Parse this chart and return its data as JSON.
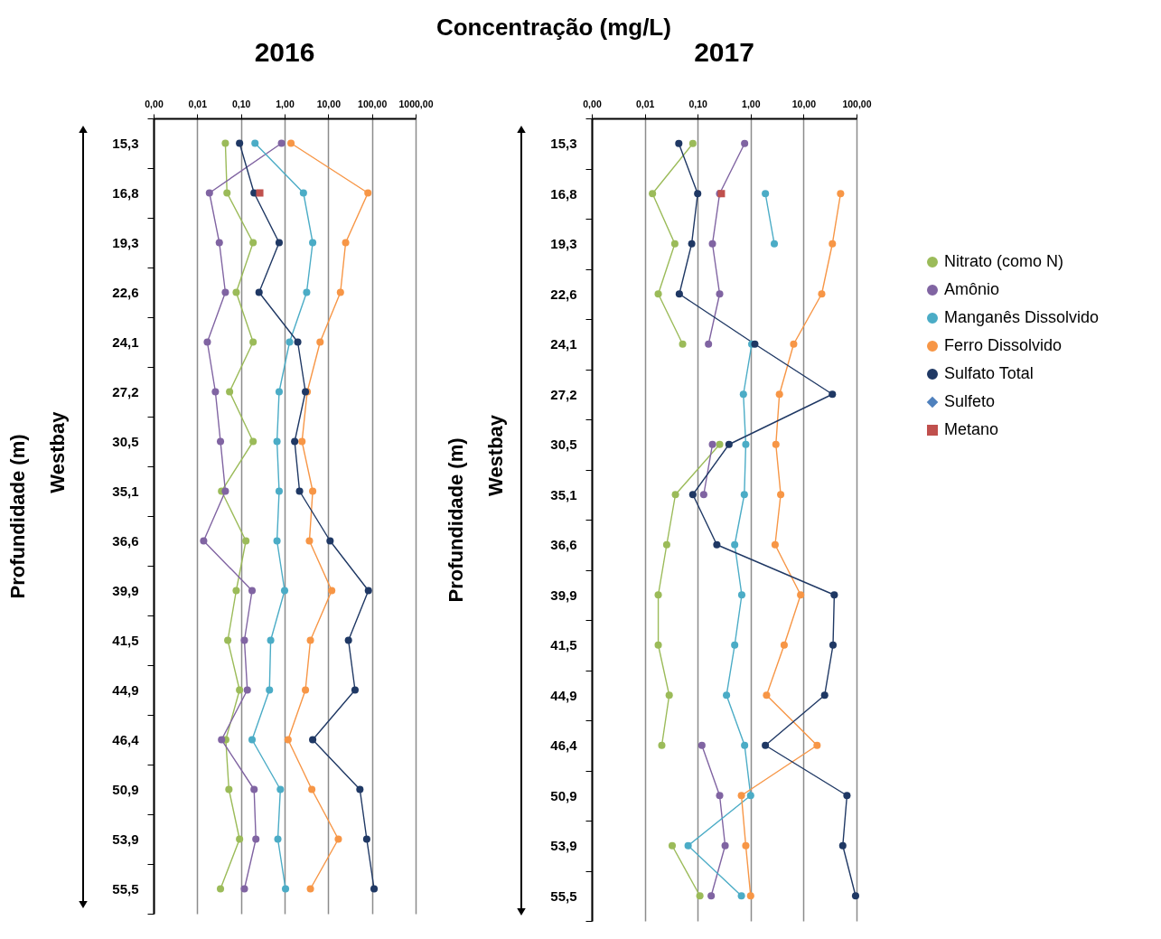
{
  "chart_data": [
    {
      "type": "line",
      "orientation": "horizontal",
      "title": "2016",
      "xlabel": "Concentração (mg/L)",
      "ylabel": "Profundidade (m)",
      "annotations": [
        "Westbay"
      ],
      "categories": [
        "15,3",
        "16,8",
        "19,3",
        "22,6",
        "24,1",
        "27,2",
        "30,5",
        "35,1",
        "36,6",
        "39,9",
        "41,5",
        "44,9",
        "46,4",
        "50,9",
        "53,9",
        "55,5"
      ],
      "log": "x",
      "xlim": [
        0.001,
        1000
      ],
      "xticks": [
        {
          "value": 0.001,
          "label": "0,00"
        },
        {
          "value": 0.01,
          "label": "0,01"
        },
        {
          "value": 0.1,
          "label": "0,10"
        },
        {
          "value": 1,
          "label": "1,00"
        },
        {
          "value": 10,
          "label": "10,00"
        },
        {
          "value": 100,
          "label": "100,00"
        },
        {
          "value": 1000,
          "label": "1000,00"
        }
      ],
      "grid": "x",
      "series": [
        {
          "color": "#9bbb59",
          "marker": "circle",
          "values": [
            0.044,
            0.048,
            0.19,
            0.078,
            0.19,
            0.055,
            0.19,
            0.036,
            0.13,
            0.078,
            0.05,
            0.093,
            0.045,
            0.053,
            0.093,
            0.034
          ]
        },
        {
          "color": "#8064a2",
          "marker": "circle",
          "values": [
            0.85,
            0.019,
            0.032,
            0.044,
            0.017,
            0.026,
            0.034,
            0.044,
            0.014,
            0.18,
            0.12,
            0.14,
            0.036,
            0.2,
            0.22,
            0.12
          ]
        },
        {
          "color": "#4bacc6",
          "marker": "circle",
          "values": [
            0.21,
            2.7,
            4.4,
            3.2,
            1.3,
            0.75,
            0.67,
            0.75,
            0.67,
            1.0,
            0.48,
            0.45,
            0.18,
            0.8,
            0.7,
            1.05
          ]
        },
        {
          "color": "#f79646",
          "marker": "circle",
          "values": [
            1.4,
            81,
            25,
            19,
            6.5,
            3.3,
            2.5,
            4.4,
            3.7,
            12,
            3.9,
            3.0,
            1.2,
            4.2,
            17,
            3.9
          ]
        },
        {
          "color": "#1f3864",
          "marker": "circle",
          "values": [
            0.093,
            0.2,
            0.75,
            0.26,
            2.0,
            3.0,
            1.7,
            2.2,
            11,
            83,
            29,
            41,
            4.4,
            53,
            76,
            112
          ]
        },
        {
          "color": "#4f81bd",
          "marker": "diamond",
          "values": [
            null,
            null,
            null,
            null,
            null,
            null,
            null,
            null,
            null,
            null,
            null,
            null,
            null,
            null,
            null,
            null
          ]
        },
        {
          "color": "#c0504d",
          "marker": "square",
          "values": [
            null,
            0.27,
            null,
            null,
            null,
            null,
            null,
            null,
            null,
            null,
            null,
            null,
            null,
            null,
            null,
            null
          ]
        }
      ]
    },
    {
      "type": "line",
      "orientation": "horizontal",
      "title": "2017",
      "ylabel": "Profundidade (m)",
      "annotations": [
        "Westbay"
      ],
      "categories": [
        "15,3",
        "16,8",
        "19,3",
        "22,6",
        "24,1",
        "27,2",
        "30,5",
        "35,1",
        "36,6",
        "39,9",
        "41,5",
        "44,9",
        "46,4",
        "50,9",
        "53,9",
        "55,5"
      ],
      "log": "x",
      "xlim": [
        0.001,
        100
      ],
      "xticks": [
        {
          "value": 0.001,
          "label": "0,00"
        },
        {
          "value": 0.01,
          "label": "0,01"
        },
        {
          "value": 0.1,
          "label": "0,10"
        },
        {
          "value": 1,
          "label": "1,00"
        },
        {
          "value": 10,
          "label": "10,00"
        },
        {
          "value": 100,
          "label": "100,00"
        }
      ],
      "grid": "x",
      "legend": "right",
      "series": [
        {
          "name": "Nitrato (como N)",
          "color": "#9bbb59",
          "marker": "circle",
          "values": [
            0.081,
            0.014,
            0.037,
            0.018,
            0.052,
            null,
            0.26,
            0.038,
            0.026,
            0.018,
            0.018,
            0.029,
            0.021,
            null,
            0.033,
            0.11
          ]
        },
        {
          "name": "Amônio",
          "color": "#8064a2",
          "marker": "circle",
          "values": [
            0.77,
            0.26,
            0.19,
            0.26,
            0.16,
            null,
            0.19,
            0.13,
            null,
            null,
            null,
            null,
            0.12,
            0.26,
            0.33,
            0.18
          ]
        },
        {
          "name": "Manganês Dissolvido",
          "color": "#4bacc6",
          "marker": "circle",
          "values": [
            null,
            1.9,
            2.8,
            null,
            1.05,
            0.73,
            0.81,
            0.76,
            0.5,
            0.68,
            0.5,
            0.35,
            0.77,
            1.0,
            0.066,
            0.67
          ]
        },
        {
          "name": "Ferro Dissolvido",
          "color": "#f79646",
          "marker": "circle",
          "values": [
            null,
            50,
            35,
            22,
            6.5,
            3.5,
            3.0,
            3.7,
            2.9,
            8.8,
            4.3,
            2.0,
            18,
            0.67,
            0.81,
            1.0
          ]
        },
        {
          "name": "Sulfato Total",
          "color": "#1f3864",
          "marker": "circle",
          "values": [
            0.044,
            0.1,
            0.077,
            0.045,
            1.2,
            35,
            0.39,
            0.081,
            0.23,
            38,
            36,
            25,
            1.9,
            66,
            55,
            96
          ]
        },
        {
          "name": "Sulfeto",
          "color": "#4f81bd",
          "marker": "diamond",
          "values": [
            null,
            null,
            null,
            null,
            null,
            null,
            null,
            null,
            null,
            null,
            null,
            null,
            null,
            null,
            null,
            null
          ]
        },
        {
          "name": "Metano",
          "color": "#c0504d",
          "marker": "square",
          "values": [
            null,
            0.28,
            null,
            null,
            null,
            null,
            null,
            null,
            null,
            null,
            null,
            null,
            null,
            null,
            null,
            null
          ]
        }
      ]
    }
  ]
}
